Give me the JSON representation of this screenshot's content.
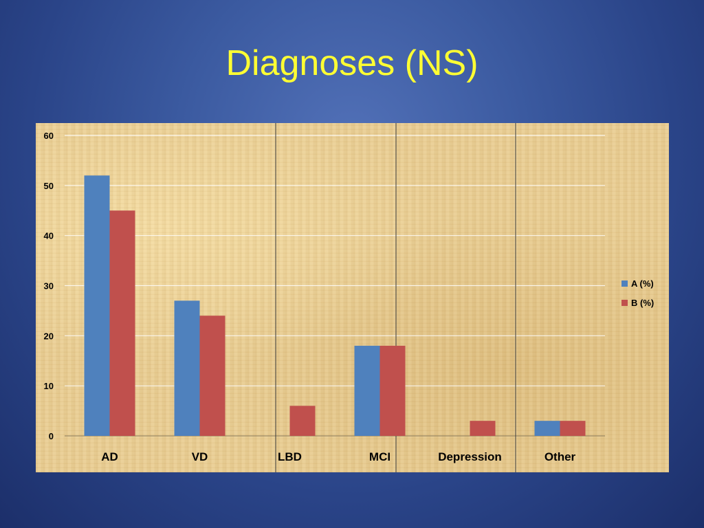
{
  "slide": {
    "title": "Diagnoses (NS)"
  },
  "colors": {
    "series_a": "#4f81bd",
    "series_b": "#c0504d",
    "title": "#ffff33"
  },
  "chart_data": {
    "type": "bar",
    "categories": [
      "AD",
      "VD",
      "LBD",
      "MCI",
      "Depression",
      "Other"
    ],
    "series": [
      {
        "name": "A (%)",
        "values": [
          52,
          27,
          0,
          18,
          0,
          3
        ]
      },
      {
        "name": "B (%)",
        "values": [
          45,
          24,
          6,
          18,
          3,
          3
        ]
      }
    ],
    "yticks": [
      "0",
      "10",
      "20",
      "30",
      "40",
      "50",
      "60"
    ],
    "ylim": [
      0,
      60
    ],
    "grid": true,
    "legend": "right"
  }
}
